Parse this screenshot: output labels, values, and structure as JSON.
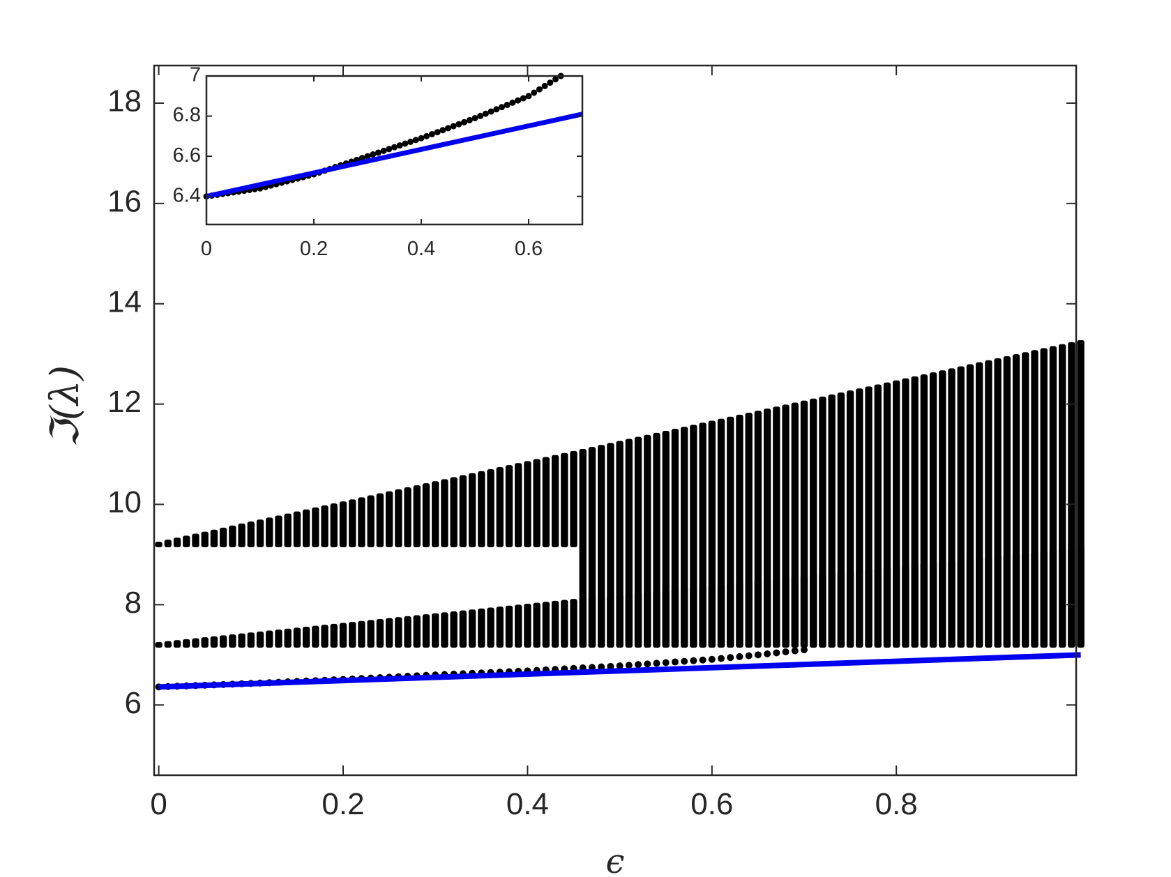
{
  "chart_data": [
    {
      "type": "scatter",
      "panel": "main",
      "xlabel": "ϵ",
      "ylabel": "ℑ(λ)",
      "xlim": [
        -0.005,
        0.995
      ],
      "ylim": [
        4.6,
        18.75
      ],
      "grid": false,
      "x_ticks": [
        0,
        0.2,
        0.4,
        0.6,
        0.8
      ],
      "x_tick_labels": [
        "0",
        "0.2",
        "0.4",
        "0.6",
        "0.8"
      ],
      "y_ticks": [
        6,
        8,
        10,
        12,
        14,
        16,
        18
      ],
      "y_tick_labels": [
        "6",
        "8",
        "10",
        "12",
        "14",
        "16",
        "18"
      ],
      "series": [
        {
          "kind": "eigenvalue-bands",
          "color": "#000000",
          "x_start": 0,
          "x_end": 0.995,
          "x_step": 0.01,
          "bands": [
            {
              "lower_at_x0": 9.2,
              "upper_at_x0": 9.2,
              "lower_at_x1": 9.2,
              "upper_at_x1": 13.2,
              "merge_x": 0.46
            },
            {
              "lower_at_x0": 7.2,
              "upper_at_x0": 7.2,
              "lower_at_x1": 7.2,
              "upper_at_x1": 9.1
            }
          ],
          "isolated_points": [
            {
              "x": 0.0,
              "y": 6.36
            },
            {
              "x": 0.1,
              "y": 6.43
            },
            {
              "x": 0.2,
              "y": 6.51
            },
            {
              "x": 0.3,
              "y": 6.6
            },
            {
              "x": 0.4,
              "y": 6.68
            },
            {
              "x": 0.5,
              "y": 6.78
            },
            {
              "x": 0.6,
              "y": 6.91
            },
            {
              "x": 0.65,
              "y": 7.0
            },
            {
              "x": 0.7,
              "y": 7.1
            }
          ]
        },
        {
          "kind": "line",
          "color": "#0000ee",
          "x": [
            0,
            1.0
          ],
          "y": [
            6.36,
            7.0
          ]
        }
      ]
    },
    {
      "type": "scatter",
      "panel": "inset",
      "xlim": [
        0,
        0.7
      ],
      "ylim": [
        6.26,
        7.0
      ],
      "grid": false,
      "x_ticks": [
        0,
        0.2,
        0.4,
        0.6
      ],
      "x_tick_labels": [
        "0",
        "0.2",
        "0.4",
        "0.6"
      ],
      "y_ticks": [
        6.4,
        6.6,
        6.8,
        7.0
      ],
      "y_tick_labels": [
        "6.4",
        "6.6",
        "6.8",
        "7"
      ],
      "series": [
        {
          "kind": "points",
          "color": "#000000",
          "x": [
            0,
            0.1,
            0.2,
            0.3,
            0.4,
            0.5,
            0.6,
            0.66
          ],
          "y": [
            6.4,
            6.44,
            6.51,
            6.6,
            6.69,
            6.79,
            6.9,
            7.0
          ]
        },
        {
          "kind": "line",
          "color": "#0000ee",
          "x": [
            0,
            0.7
          ],
          "y": [
            6.4,
            6.81
          ]
        }
      ]
    }
  ]
}
